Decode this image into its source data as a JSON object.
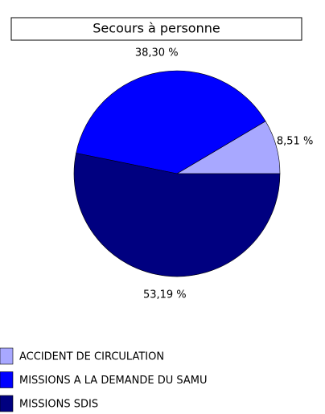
{
  "chart_data": {
    "type": "pie",
    "title": "Secours à personne",
    "categories": [
      "ACCIDENT DE CIRCULATION",
      "MISSIONS A LA DEMANDE DU SAMU",
      "MISSIONS SDIS"
    ],
    "values": [
      8.51,
      38.3,
      53.19
    ],
    "value_labels": [
      "8,51 %",
      "38,30 %",
      "53,19 %"
    ],
    "colors": [
      "#a8a8ff",
      "#0000ff",
      "#000080"
    ]
  }
}
